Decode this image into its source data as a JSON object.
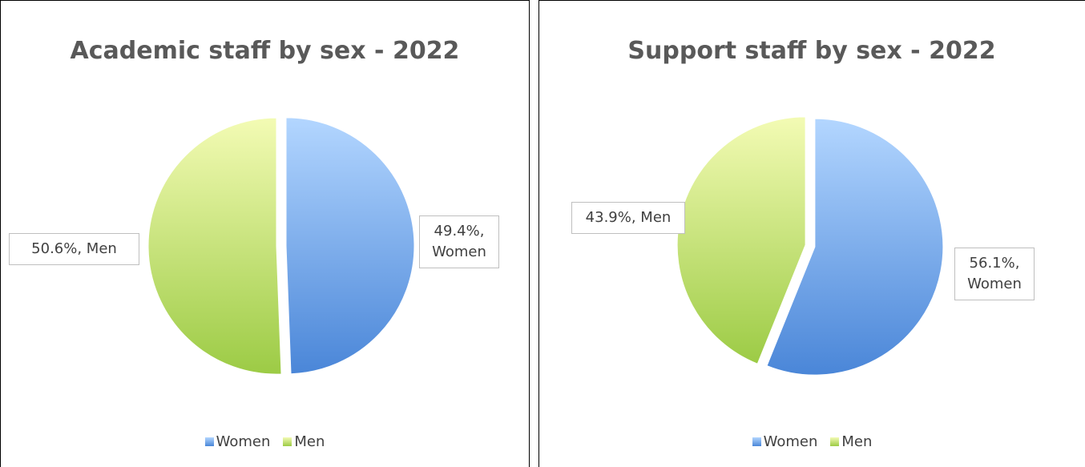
{
  "chart_data": [
    {
      "type": "pie",
      "title": "Academic staff by sex - 2022",
      "categories": [
        "Women",
        "Men"
      ],
      "values": [
        49.4,
        50.6
      ],
      "value_labels": [
        "49.4%, Women",
        "50.6%, Men"
      ],
      "colors": [
        "#4a86d8",
        "#9ccb45"
      ],
      "legend": "bottom"
    },
    {
      "type": "pie",
      "title": "Support staff by sex - 2022",
      "categories": [
        "Women",
        "Men"
      ],
      "values": [
        56.1,
        43.9
      ],
      "value_labels": [
        "56.1%, Women",
        "43.9%, Men"
      ],
      "colors": [
        "#4a86d8",
        "#9ccb45"
      ],
      "legend": "bottom"
    }
  ]
}
